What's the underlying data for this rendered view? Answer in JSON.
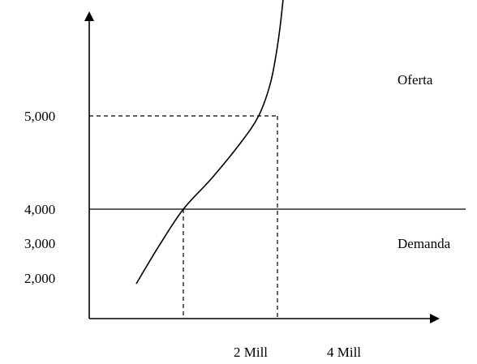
{
  "chart_data": {
    "type": "line",
    "title": "",
    "xlabel": "",
    "ylabel": "",
    "y_tick_labels": [
      "5,000",
      "4,000",
      "3,000",
      "2,000"
    ],
    "x_tick_labels": [
      "2 Mill",
      "4 Mill"
    ],
    "series": [
      {
        "name": "Oferta",
        "x": [
          1.0,
          1.5,
          2.0,
          2.6,
          3.2,
          3.6,
          3.85,
          4.0,
          4.1,
          4.18,
          4.23
        ],
        "y": [
          3200,
          3620,
          4000,
          4330,
          4700,
          5000,
          5350,
          5750,
          6150,
          6600,
          7020
        ]
      },
      {
        "name": "Demanda",
        "x": [
          0,
          8
        ],
        "y": [
          4000,
          4000
        ]
      }
    ],
    "annotations": [
      {
        "type": "dashed-guide",
        "x": 4,
        "y": 5000
      },
      {
        "type": "dashed-guide",
        "x": 2,
        "y": 4000
      }
    ]
  }
}
